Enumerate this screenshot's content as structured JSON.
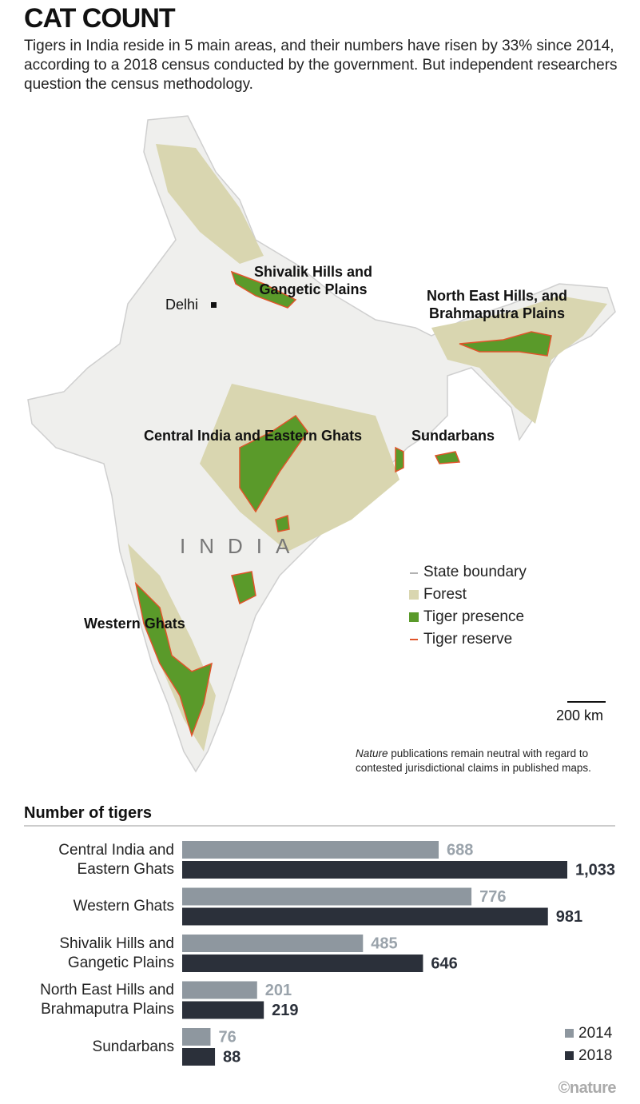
{
  "title": "CAT COUNT",
  "subtitle": "Tigers in India reside in 5 main areas, and their numbers have risen by 33% since 2014, according to a 2018 census conducted by the government. But independent researchers question the census methodology.",
  "map": {
    "regions": [
      "Shivalik Hills and\nGangetic Plains",
      "North East Hills, and\nBrahmaputra Plains",
      "Central India and Eastern Ghats",
      "Sundarbans",
      "Western Ghats"
    ],
    "city": "Delhi",
    "country": "INDIA",
    "legend": [
      "State boundary",
      "Forest",
      "Tiger presence",
      "Tiger reserve"
    ],
    "scale": "200 km",
    "disclaimer_italic": "Nature",
    "disclaimer": " publications remain neutral with regard to contested jurisdictional claims in published maps."
  },
  "chart_data": {
    "type": "bar",
    "orientation": "horizontal",
    "title": "Number of tigers",
    "categories": [
      "Central India and\nEastern Ghats",
      "Western Ghats",
      "Shivalik Hills and\nGangetic Plains",
      "North East Hills and\nBrahmaputra Plains",
      "Sundarbans"
    ],
    "series": [
      {
        "name": "2014",
        "color": "#8e979f",
        "values": [
          688,
          776,
          485,
          201,
          76
        ]
      },
      {
        "name": "2018",
        "color": "#2b303a",
        "values": [
          1033,
          981,
          646,
          219,
          88
        ],
        "value_labels": [
          "1,033",
          "981",
          "646",
          "219",
          "88"
        ]
      }
    ],
    "legend": "bottom-right"
  },
  "credit": "©nature"
}
